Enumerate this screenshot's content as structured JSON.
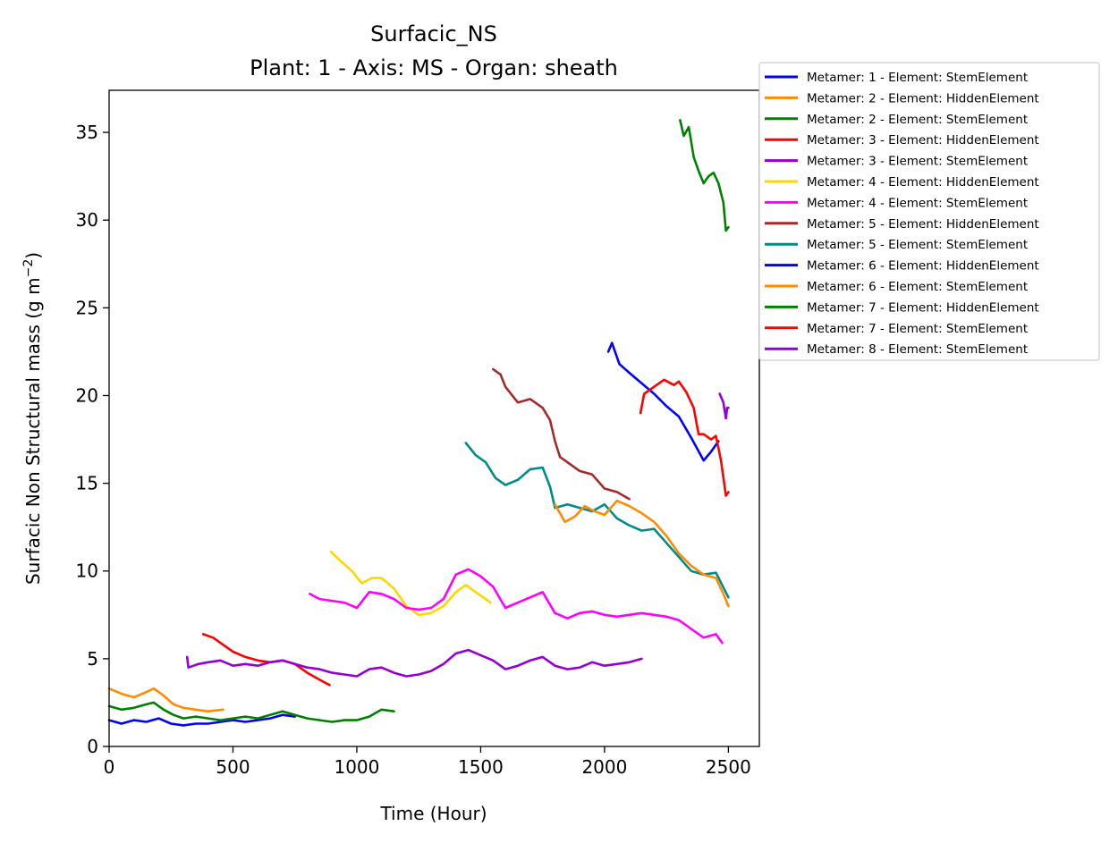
{
  "chart_data": {
    "type": "line",
    "title": "Surfacic_NS",
    "subtitle": "Plant: 1 - Axis: MS - Organ: sheath",
    "xlabel": "Time (Hour)",
    "ylabel": "Surfacic Non Structural mass (g m",
    "ylabel_sup": "−2",
    "ylabel_tail": ")",
    "xlim": [
      0,
      2625
    ],
    "ylim": [
      0,
      37.4
    ],
    "xticks": [
      0,
      500,
      1000,
      1500,
      2000,
      2500
    ],
    "yticks": [
      0,
      5,
      10,
      15,
      20,
      25,
      30,
      35
    ],
    "grid": false,
    "legend_position": "outside-top-right",
    "series": [
      {
        "name": "Metamer: 1 - Element: StemElement",
        "color": "#0000ff",
        "points": [
          [
            0,
            1.5
          ],
          [
            50,
            1.3
          ],
          [
            100,
            1.5
          ],
          [
            150,
            1.4
          ],
          [
            200,
            1.6
          ],
          [
            250,
            1.3
          ],
          [
            300,
            1.2
          ],
          [
            350,
            1.3
          ],
          [
            400,
            1.3
          ],
          [
            450,
            1.4
          ],
          [
            500,
            1.5
          ],
          [
            550,
            1.4
          ],
          [
            600,
            1.5
          ],
          [
            650,
            1.6
          ],
          [
            700,
            1.8
          ],
          [
            750,
            1.7
          ]
        ]
      },
      {
        "name": "Metamer: 2 - Element: HiddenElement",
        "color": "#ff8c00",
        "points": [
          [
            0,
            3.3
          ],
          [
            50,
            3.0
          ],
          [
            100,
            2.8
          ],
          [
            150,
            3.1
          ],
          [
            180,
            3.3
          ],
          [
            220,
            2.9
          ],
          [
            260,
            2.4
          ],
          [
            300,
            2.2
          ],
          [
            350,
            2.1
          ],
          [
            400,
            2.0
          ],
          [
            460,
            2.1
          ]
        ]
      },
      {
        "name": "Metamer: 2 - Element: StemElement",
        "color": "#008000",
        "points": [
          [
            0,
            2.3
          ],
          [
            50,
            2.1
          ],
          [
            100,
            2.2
          ],
          [
            150,
            2.4
          ],
          [
            180,
            2.5
          ],
          [
            220,
            2.1
          ],
          [
            260,
            1.8
          ],
          [
            300,
            1.6
          ],
          [
            350,
            1.7
          ],
          [
            400,
            1.6
          ],
          [
            450,
            1.5
          ],
          [
            500,
            1.6
          ],
          [
            550,
            1.7
          ],
          [
            600,
            1.6
          ],
          [
            650,
            1.8
          ],
          [
            700,
            2.0
          ],
          [
            750,
            1.8
          ],
          [
            800,
            1.6
          ],
          [
            850,
            1.5
          ],
          [
            900,
            1.4
          ],
          [
            950,
            1.5
          ],
          [
            1000,
            1.5
          ],
          [
            1050,
            1.7
          ],
          [
            1100,
            2.1
          ],
          [
            1150,
            2.0
          ]
        ]
      },
      {
        "name": "Metamer: 3 - Element: HiddenElement",
        "color": "#ff0000",
        "points": [
          [
            380,
            6.4
          ],
          [
            420,
            6.2
          ],
          [
            460,
            5.8
          ],
          [
            500,
            5.4
          ],
          [
            550,
            5.1
          ],
          [
            600,
            4.9
          ],
          [
            650,
            4.8
          ],
          [
            700,
            4.9
          ],
          [
            750,
            4.7
          ],
          [
            800,
            4.2
          ],
          [
            850,
            3.8
          ],
          [
            890,
            3.5
          ]
        ]
      },
      {
        "name": "Metamer: 3 - Element: StemElement",
        "color": "#9400d3",
        "points": [
          [
            315,
            5.1
          ],
          [
            320,
            4.5
          ],
          [
            360,
            4.7
          ],
          [
            400,
            4.8
          ],
          [
            450,
            4.9
          ],
          [
            500,
            4.6
          ],
          [
            550,
            4.7
          ],
          [
            600,
            4.6
          ],
          [
            650,
            4.8
          ],
          [
            700,
            4.9
          ],
          [
            750,
            4.7
          ],
          [
            800,
            4.5
          ],
          [
            850,
            4.4
          ],
          [
            900,
            4.2
          ],
          [
            950,
            4.1
          ],
          [
            1000,
            4.0
          ],
          [
            1050,
            4.4
          ],
          [
            1100,
            4.5
          ],
          [
            1150,
            4.2
          ],
          [
            1200,
            4.0
          ],
          [
            1250,
            4.1
          ],
          [
            1300,
            4.3
          ],
          [
            1350,
            4.7
          ],
          [
            1400,
            5.3
          ],
          [
            1450,
            5.5
          ],
          [
            1500,
            5.2
          ],
          [
            1550,
            4.9
          ],
          [
            1600,
            4.4
          ],
          [
            1650,
            4.6
          ],
          [
            1700,
            4.9
          ],
          [
            1750,
            5.1
          ],
          [
            1800,
            4.6
          ],
          [
            1850,
            4.4
          ],
          [
            1900,
            4.5
          ],
          [
            1950,
            4.8
          ],
          [
            2000,
            4.6
          ],
          [
            2050,
            4.7
          ],
          [
            2100,
            4.8
          ],
          [
            2150,
            5.0
          ]
        ]
      },
      {
        "name": "Metamer: 4 - Element: HiddenElement",
        "color": "#ffd700",
        "points": [
          [
            895,
            11.1
          ],
          [
            940,
            10.5
          ],
          [
            980,
            10.0
          ],
          [
            1020,
            9.3
          ],
          [
            1060,
            9.6
          ],
          [
            1100,
            9.6
          ],
          [
            1150,
            9.0
          ],
          [
            1200,
            8.0
          ],
          [
            1250,
            7.5
          ],
          [
            1300,
            7.6
          ],
          [
            1350,
            8.0
          ],
          [
            1400,
            8.8
          ],
          [
            1440,
            9.2
          ],
          [
            1480,
            8.8
          ],
          [
            1520,
            8.4
          ],
          [
            1540,
            8.2
          ]
        ]
      },
      {
        "name": "Metamer: 4 - Element: StemElement",
        "color": "#ff00ff",
        "points": [
          [
            810,
            8.7
          ],
          [
            850,
            8.4
          ],
          [
            900,
            8.3
          ],
          [
            950,
            8.2
          ],
          [
            1000,
            7.9
          ],
          [
            1050,
            8.8
          ],
          [
            1100,
            8.7
          ],
          [
            1150,
            8.4
          ],
          [
            1200,
            7.9
          ],
          [
            1250,
            7.8
          ],
          [
            1300,
            7.9
          ],
          [
            1350,
            8.4
          ],
          [
            1400,
            9.8
          ],
          [
            1450,
            10.1
          ],
          [
            1500,
            9.7
          ],
          [
            1550,
            9.1
          ],
          [
            1600,
            7.9
          ],
          [
            1650,
            8.2
          ],
          [
            1700,
            8.5
          ],
          [
            1750,
            8.8
          ],
          [
            1800,
            7.6
          ],
          [
            1850,
            7.3
          ],
          [
            1900,
            7.6
          ],
          [
            1950,
            7.7
          ],
          [
            2000,
            7.5
          ],
          [
            2050,
            7.4
          ],
          [
            2100,
            7.5
          ],
          [
            2150,
            7.6
          ],
          [
            2200,
            7.5
          ],
          [
            2250,
            7.4
          ],
          [
            2300,
            7.2
          ],
          [
            2350,
            6.7
          ],
          [
            2400,
            6.2
          ],
          [
            2450,
            6.4
          ],
          [
            2475,
            5.9
          ]
        ]
      },
      {
        "name": "Metamer: 5 - Element: HiddenElement",
        "color": "#a52a2a",
        "points": [
          [
            1550,
            21.5
          ],
          [
            1580,
            21.2
          ],
          [
            1600,
            20.5
          ],
          [
            1650,
            19.6
          ],
          [
            1700,
            19.8
          ],
          [
            1750,
            19.3
          ],
          [
            1780,
            18.6
          ],
          [
            1800,
            17.4
          ],
          [
            1820,
            16.5
          ],
          [
            1850,
            16.2
          ],
          [
            1900,
            15.7
          ],
          [
            1950,
            15.5
          ],
          [
            2000,
            14.7
          ],
          [
            2050,
            14.5
          ],
          [
            2100,
            14.1
          ]
        ]
      },
      {
        "name": "Metamer: 5 - Element: StemElement",
        "color": "#008b8b",
        "points": [
          [
            1440,
            17.3
          ],
          [
            1480,
            16.6
          ],
          [
            1520,
            16.2
          ],
          [
            1560,
            15.3
          ],
          [
            1600,
            14.9
          ],
          [
            1650,
            15.2
          ],
          [
            1700,
            15.8
          ],
          [
            1750,
            15.9
          ],
          [
            1780,
            14.8
          ],
          [
            1800,
            13.6
          ],
          [
            1850,
            13.8
          ],
          [
            1900,
            13.6
          ],
          [
            1950,
            13.4
          ],
          [
            2000,
            13.8
          ],
          [
            2050,
            13.0
          ],
          [
            2100,
            12.6
          ],
          [
            2150,
            12.3
          ],
          [
            2200,
            12.4
          ],
          [
            2250,
            11.6
          ],
          [
            2300,
            10.8
          ],
          [
            2350,
            10.0
          ],
          [
            2400,
            9.8
          ],
          [
            2450,
            9.9
          ],
          [
            2500,
            8.5
          ]
        ]
      },
      {
        "name": "Metamer: 6 - Element: HiddenElement",
        "color": "#0000ff",
        "points": [
          [
            2015,
            22.5
          ],
          [
            2030,
            23.0
          ],
          [
            2060,
            21.8
          ],
          [
            2100,
            21.3
          ],
          [
            2150,
            20.7
          ],
          [
            2200,
            20.1
          ],
          [
            2250,
            19.4
          ],
          [
            2300,
            18.8
          ],
          [
            2350,
            17.6
          ],
          [
            2400,
            16.3
          ],
          [
            2430,
            16.8
          ],
          [
            2460,
            17.4
          ]
        ]
      },
      {
        "name": "Metamer: 6 - Element: StemElement",
        "color": "#ff8c00",
        "points": [
          [
            1800,
            13.8
          ],
          [
            1840,
            12.8
          ],
          [
            1880,
            13.1
          ],
          [
            1920,
            13.7
          ],
          [
            1960,
            13.4
          ],
          [
            2000,
            13.2
          ],
          [
            2050,
            14.0
          ],
          [
            2100,
            13.7
          ],
          [
            2150,
            13.3
          ],
          [
            2200,
            12.8
          ],
          [
            2250,
            12.0
          ],
          [
            2300,
            11.0
          ],
          [
            2350,
            10.3
          ],
          [
            2400,
            9.8
          ],
          [
            2450,
            9.6
          ],
          [
            2480,
            8.7
          ],
          [
            2500,
            8.0
          ]
        ]
      },
      {
        "name": "Metamer: 7 - Element: HiddenElement",
        "color": "#008000",
        "points": [
          [
            2305,
            35.7
          ],
          [
            2320,
            34.8
          ],
          [
            2340,
            35.3
          ],
          [
            2360,
            33.6
          ],
          [
            2380,
            32.8
          ],
          [
            2400,
            32.1
          ],
          [
            2420,
            32.5
          ],
          [
            2440,
            32.7
          ],
          [
            2460,
            32.1
          ],
          [
            2480,
            31.0
          ],
          [
            2490,
            29.4
          ],
          [
            2500,
            29.6
          ]
        ]
      },
      {
        "name": "Metamer: 7 - Element: StemElement",
        "color": "#ff0000",
        "points": [
          [
            2145,
            19.0
          ],
          [
            2160,
            20.1
          ],
          [
            2200,
            20.5
          ],
          [
            2240,
            20.9
          ],
          [
            2280,
            20.6
          ],
          [
            2300,
            20.8
          ],
          [
            2330,
            20.2
          ],
          [
            2360,
            19.3
          ],
          [
            2380,
            17.8
          ],
          [
            2400,
            17.8
          ],
          [
            2430,
            17.5
          ],
          [
            2450,
            17.7
          ],
          [
            2470,
            16.3
          ],
          [
            2490,
            14.3
          ],
          [
            2500,
            14.5
          ]
        ]
      },
      {
        "name": "Metamer: 8 - Element: StemElement",
        "color": "#9400d3",
        "points": [
          [
            2465,
            20.1
          ],
          [
            2480,
            19.6
          ],
          [
            2490,
            18.7
          ],
          [
            2495,
            19.3
          ],
          [
            2500,
            19.3
          ]
        ]
      }
    ]
  }
}
